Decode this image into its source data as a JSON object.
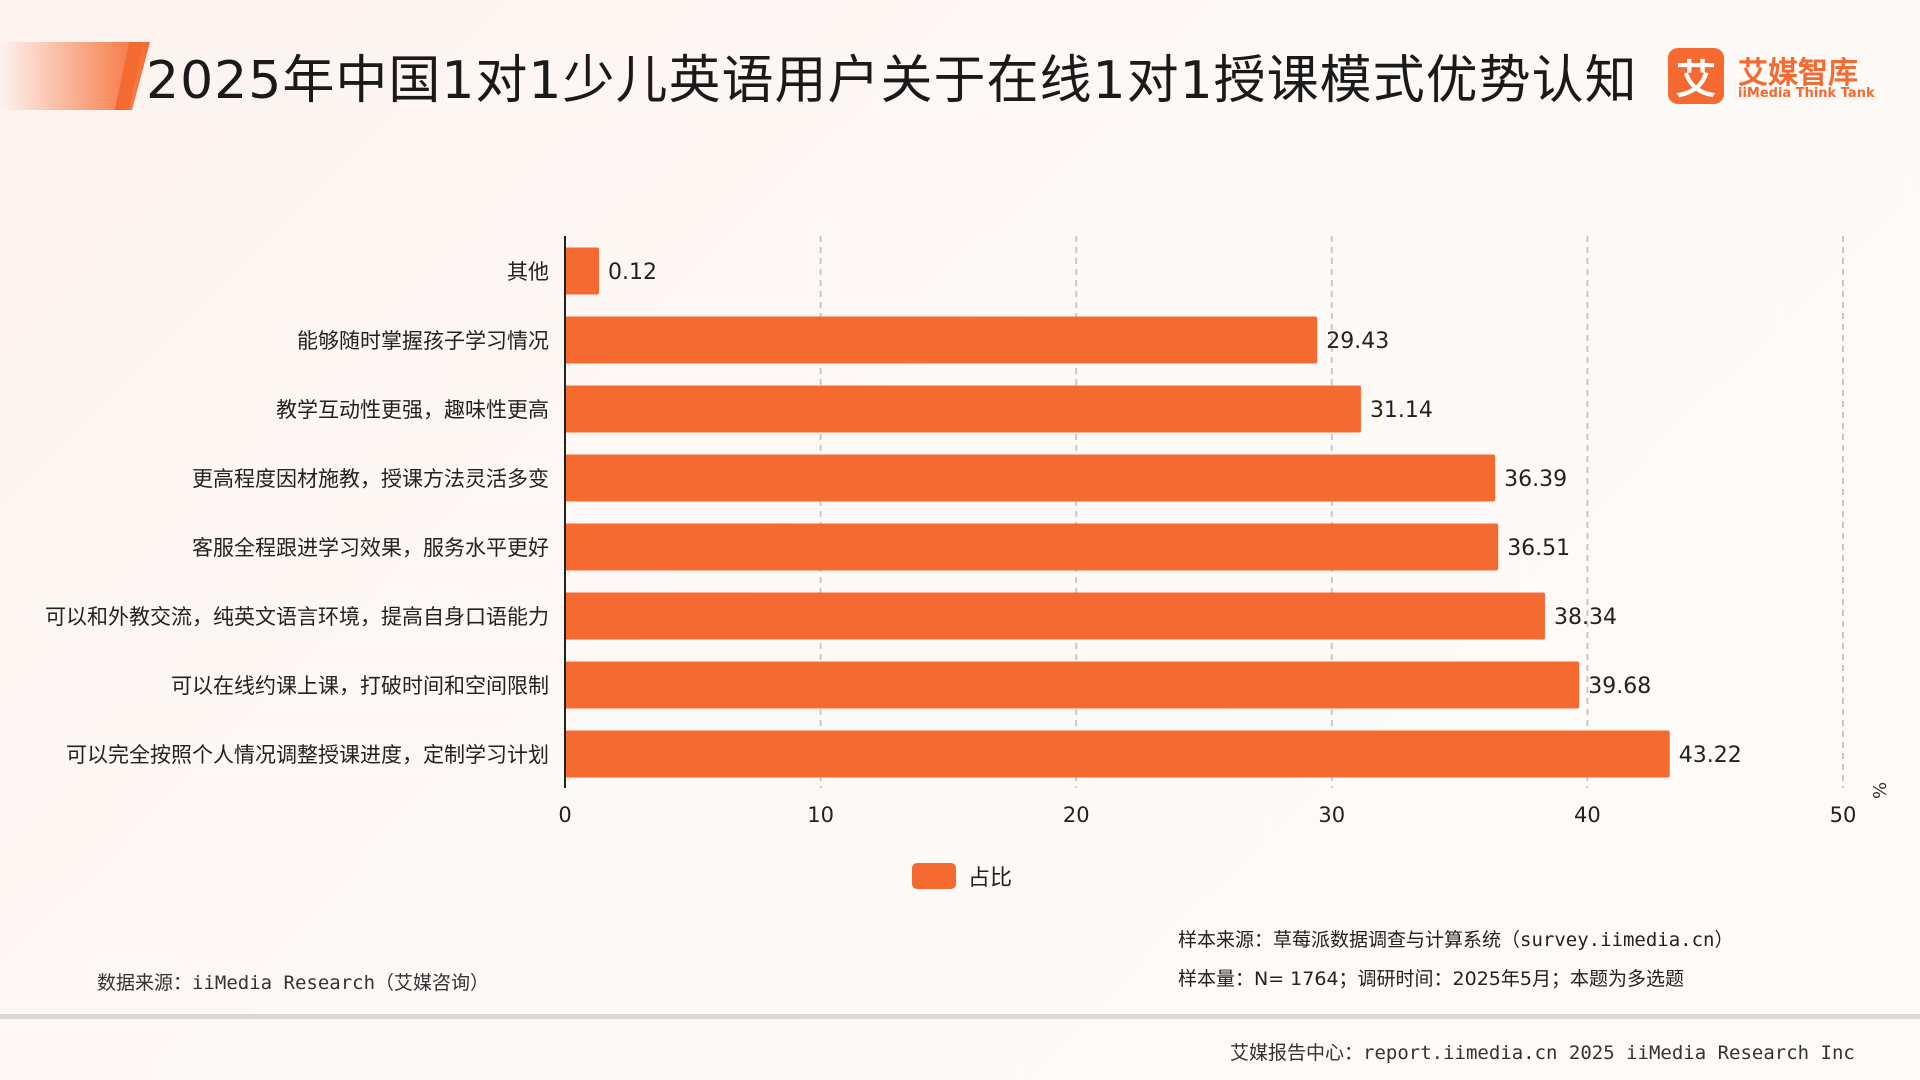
{
  "header": {
    "title": "2025年中国1对1少儿英语用户关于在线1对1授课模式优势认知",
    "logo_cn": "艾媒智库",
    "logo_en": "iiMedia Think Tank",
    "logo_mark": "艾"
  },
  "colors": {
    "accent": "#f56a30",
    "grid": "#c8c8c8",
    "axis": "#222222"
  },
  "chart_data": {
    "type": "bar",
    "orientation": "horizontal",
    "categories": [
      "其他",
      "能够随时掌握孩子学习情况",
      "教学互动性更强，趣味性更高",
      "更高程度因材施教，授课方法灵活多变",
      "客服全程跟进学习效果，服务水平更好",
      "可以和外教交流，纯英文语言环境，提高自身口语能力",
      "可以在线约课上课，打破时间和空间限制",
      "可以完全按照个人情况调整授课进度，定制学习计划"
    ],
    "series": [
      {
        "name": "占比",
        "values": [
          0.12,
          29.43,
          31.14,
          36.39,
          36.51,
          38.34,
          39.68,
          43.22
        ]
      }
    ],
    "value_labels": [
      "0.12",
      "29.43",
      "31.14",
      "36.39",
      "36.51",
      "38.34",
      "39.68",
      "43.22"
    ],
    "xlim": [
      0,
      50
    ],
    "xticks": [
      0,
      10,
      20,
      30,
      40,
      50
    ],
    "unit": "%",
    "grid": "vertical dashed",
    "legend_position": "bottom"
  },
  "legend": {
    "label": "占比"
  },
  "notes": {
    "sample_source": "样本来源：草莓派数据调查与计算系统（survey.iimedia.cn）",
    "sample_size": "样本量：N= 1764；调研时间：2025年5月；本题为多选题",
    "data_source": "数据来源：iiMedia Research（艾媒咨询）"
  },
  "footer": {
    "text": "艾媒报告中心：report.iimedia.cn   2025 iiMedia Research Inc"
  }
}
